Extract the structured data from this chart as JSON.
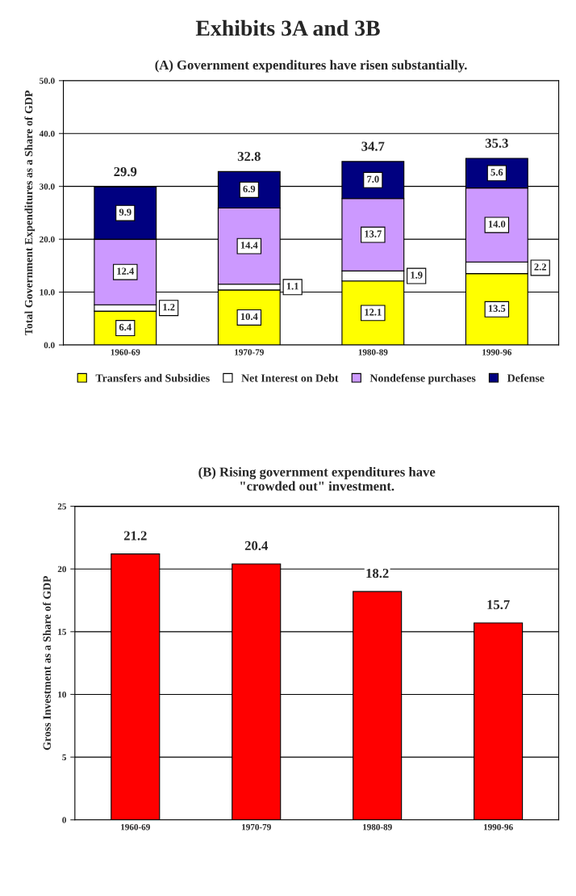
{
  "chart_data": [
    {
      "type": "bar",
      "title": "Exhibits 3A and 3B",
      "subtitle": "(A) Government expenditures have risen substantially.",
      "ylabel": "Total Government Expenditures as a Share of GDP",
      "categories": [
        "1960-69",
        "1970-79",
        "1980-89",
        "1990-96"
      ],
      "stacked": true,
      "series": [
        {
          "name": "Transfers and Subsidies",
          "color": "#ffff00",
          "values": [
            6.4,
            10.4,
            12.1,
            13.5
          ]
        },
        {
          "name": "Net Interest on Debt",
          "color": "#ffffff",
          "values": [
            1.2,
            1.1,
            1.9,
            2.2
          ]
        },
        {
          "name": "Nondefense purchases",
          "color": "#cc99ff",
          "values": [
            12.4,
            14.4,
            13.7,
            14.0
          ]
        },
        {
          "name": "Defense",
          "color": "#000080",
          "values": [
            9.9,
            6.9,
            7.0,
            5.6
          ]
        }
      ],
      "value_labels": [
        [
          "6.4",
          "10.4",
          "12.1",
          "13.5"
        ],
        [
          "1.2",
          "1.1",
          "1.9",
          "2.2"
        ],
        [
          "12.4",
          "14.4",
          "13.7",
          "14.0"
        ],
        [
          "9.9",
          "6.9",
          "7.0",
          "5.6"
        ]
      ],
      "totals": [
        "29.9",
        "32.8",
        "34.7",
        "35.3"
      ],
      "ylim": [
        0,
        50
      ],
      "yticks": [
        {
          "value": 0,
          "label": "0.0"
        },
        {
          "value": 10,
          "label": "10.0"
        },
        {
          "value": 20,
          "label": "20.0"
        },
        {
          "value": 30,
          "label": "30.0"
        },
        {
          "value": 40,
          "label": "40.0"
        },
        {
          "value": 50,
          "label": "50.0"
        }
      ],
      "grid": "y",
      "legend": "bottom"
    },
    {
      "type": "bar",
      "title": "(B) Rising government expenditures have\n\"crowded out\" investment.",
      "ylabel": "Gross Investment as a Share of GDP",
      "categories": [
        "1960-69",
        "1970-79",
        "1980-89",
        "1990-96"
      ],
      "values": [
        21.2,
        20.4,
        18.2,
        15.7
      ],
      "color": "#ff0000",
      "data_labels": true,
      "ylim": [
        0,
        25
      ],
      "yticks": [
        0,
        5,
        10,
        15,
        20,
        25
      ],
      "grid": "y"
    }
  ]
}
